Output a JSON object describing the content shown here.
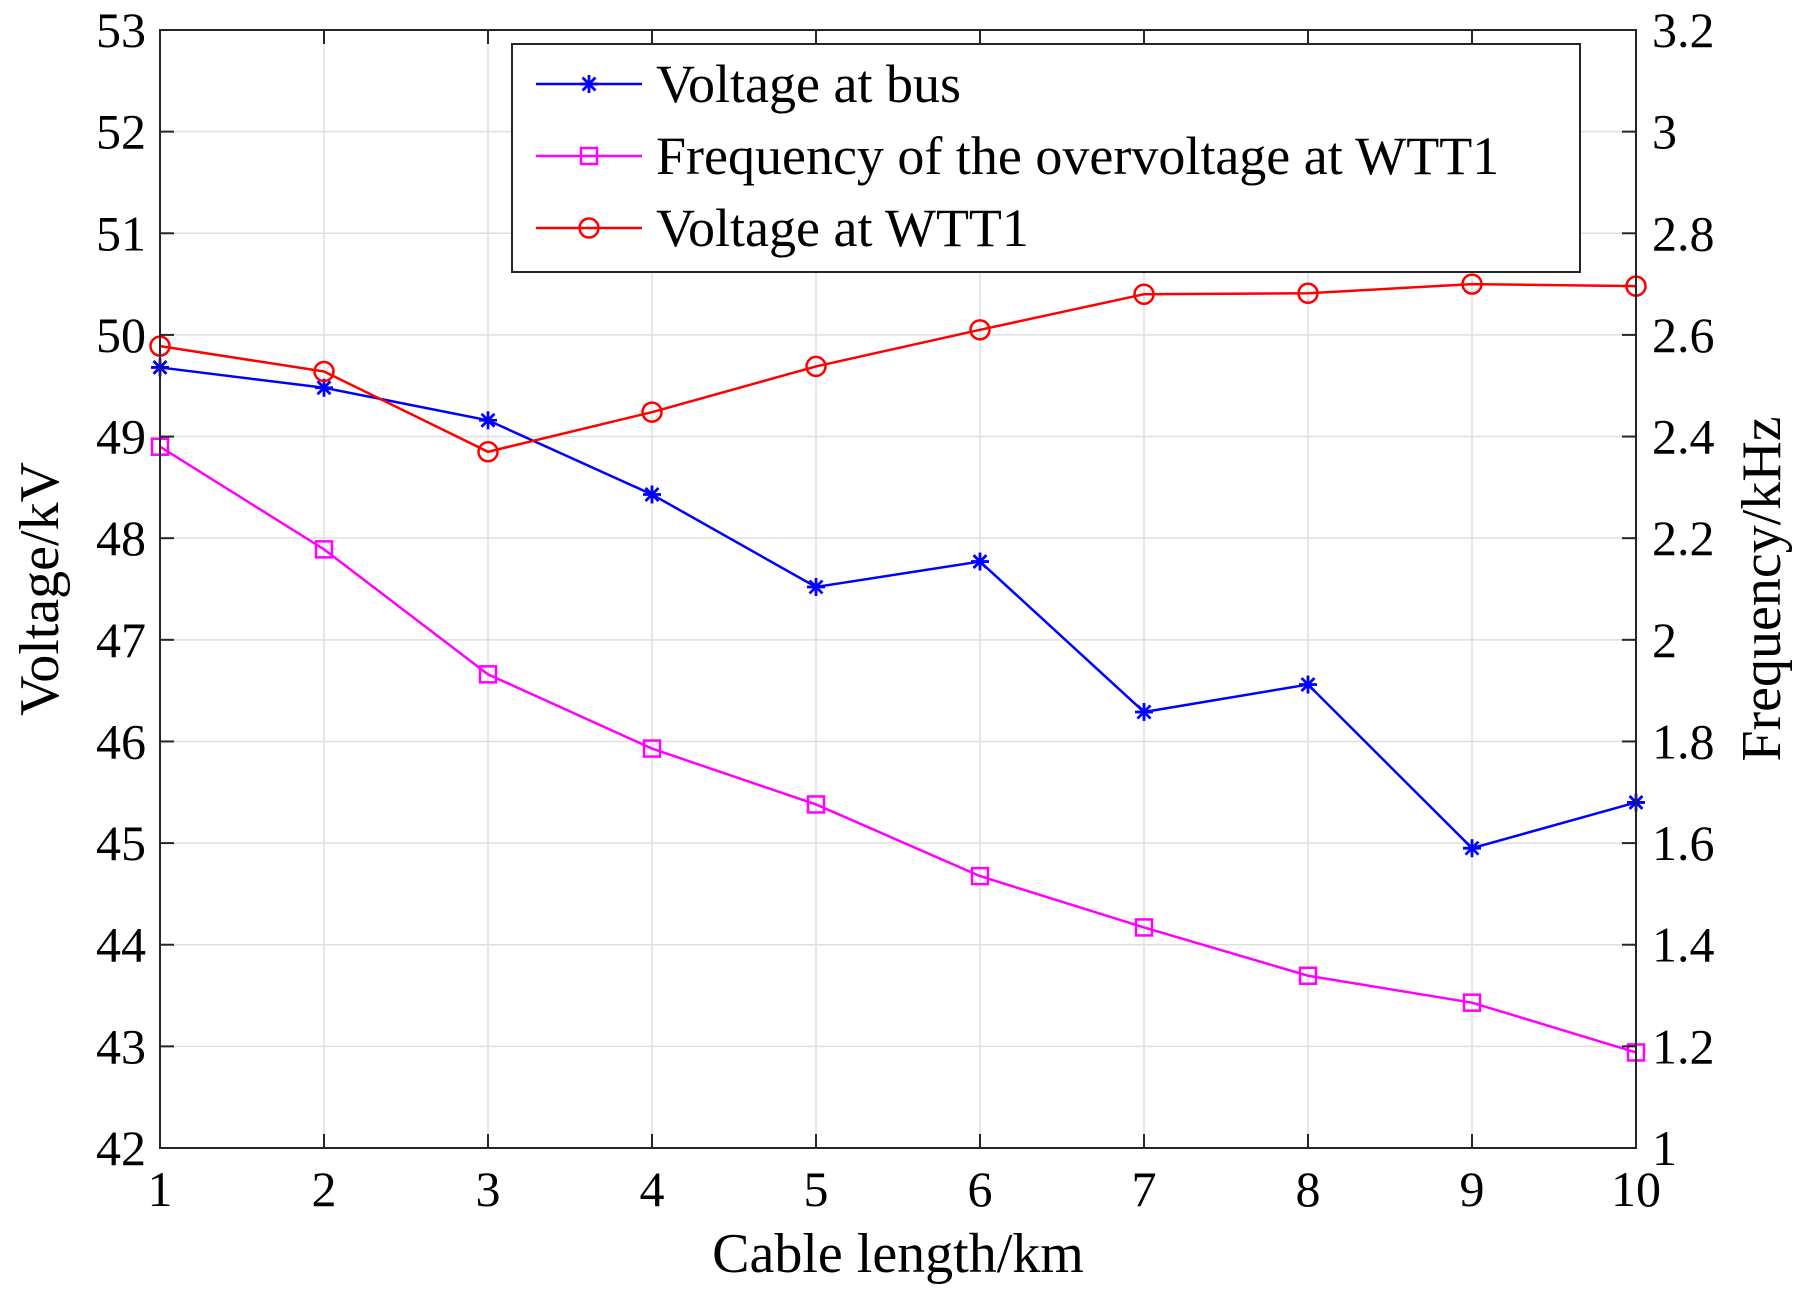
{
  "chart_data": {
    "type": "line",
    "xlabel": "Cable length/km",
    "ylabel_left": "Voltage/kV",
    "ylabel_right": "Frequency/kHz",
    "x": [
      1,
      2,
      3,
      4,
      5,
      6,
      7,
      8,
      9,
      10
    ],
    "xlim": [
      1,
      10
    ],
    "ylim_left": [
      42,
      53
    ],
    "ylim_right": [
      1,
      3.2
    ],
    "x_ticks": [
      "1",
      "2",
      "3",
      "4",
      "5",
      "6",
      "7",
      "8",
      "9",
      "10"
    ],
    "y_ticks_left": [
      "42",
      "43",
      "44",
      "45",
      "46",
      "47",
      "48",
      "49",
      "50",
      "51",
      "52",
      "53"
    ],
    "y_ticks_right": [
      "1",
      "1.2",
      "1.4",
      "1.6",
      "1.8",
      "2",
      "2.2",
      "2.4",
      "2.6",
      "2.8",
      "3",
      "3.2"
    ],
    "grid": true,
    "legend_position": "top-right",
    "series": [
      {
        "name": "Voltage at bus",
        "axis": "left",
        "color": "#0000ff",
        "marker": "asterisk",
        "values": [
          49.68,
          49.48,
          49.16,
          48.43,
          47.52,
          47.77,
          46.29,
          46.56,
          44.95,
          45.4
        ]
      },
      {
        "name": "Frequency of the overvoltage at WTT1",
        "axis": "right",
        "color": "#ff00ff",
        "marker": "square",
        "values": [
          2.38,
          2.178,
          1.932,
          1.786,
          1.676,
          1.535,
          1.434,
          1.339,
          1.286,
          1.188
        ]
      },
      {
        "name": "Voltage at WTT1",
        "axis": "left",
        "color": "#ff0000",
        "marker": "circle",
        "values": [
          49.89,
          49.64,
          48.85,
          49.24,
          49.69,
          50.05,
          50.4,
          50.41,
          50.5,
          50.48
        ]
      }
    ]
  }
}
